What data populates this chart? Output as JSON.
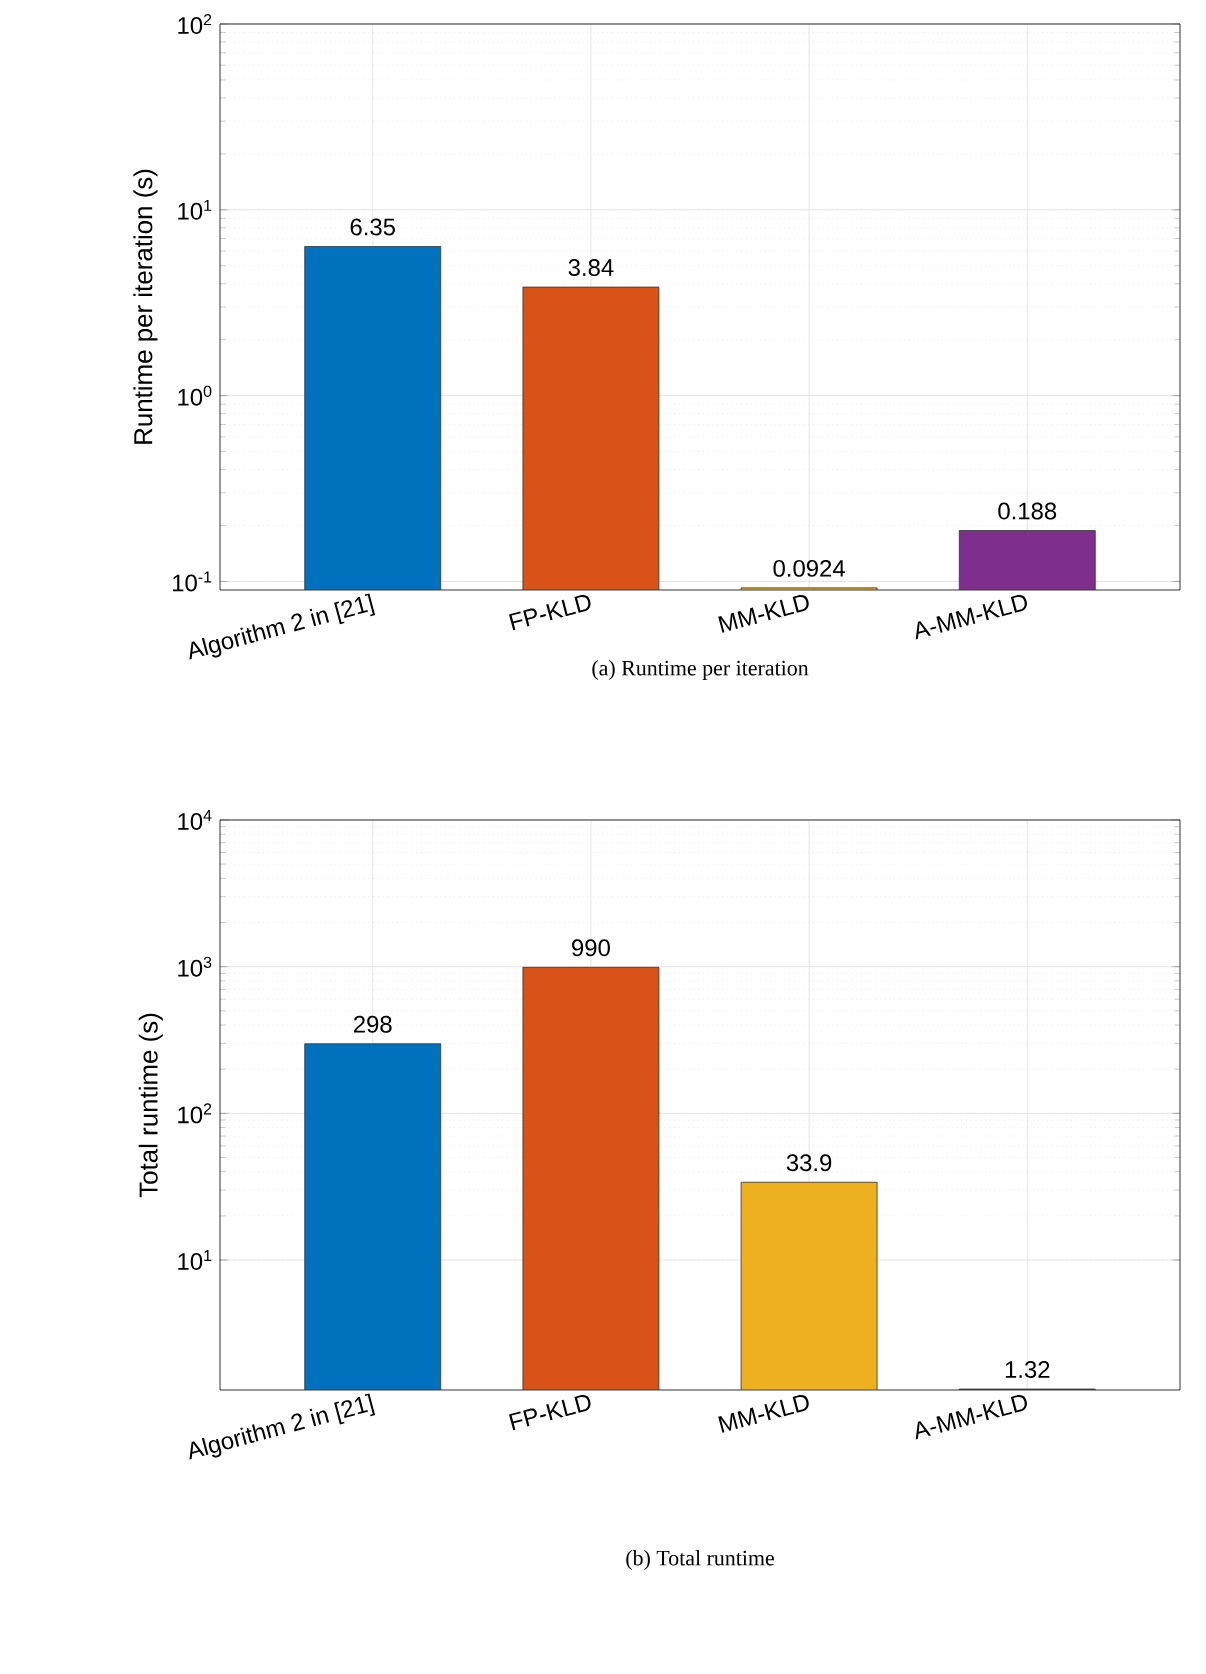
{
  "chart_data": [
    {
      "type": "bar",
      "title": "(a) Runtime per iteration",
      "ylabel": "Runtime per iteration (s)",
      "categories": [
        "Algorithm 2 in [21]",
        "FP-KLD",
        "MM-KLD",
        "A-MM-KLD"
      ],
      "values": [
        6.35,
        3.84,
        0.0924,
        0.188
      ],
      "colors": [
        "#0072bd",
        "#d95319",
        "#edb120",
        "#7e2f8e"
      ],
      "ylim": [
        0.09,
        100
      ],
      "yticks": [
        {
          "value": 0.1,
          "label": "10$^{-1}$"
        },
        {
          "value": 1,
          "label": "10$^{0}$"
        },
        {
          "value": 10,
          "label": "10$^{1}$"
        },
        {
          "value": 100,
          "label": "10$^{2}$"
        }
      ],
      "log": true,
      "grid": true,
      "data_labels": true
    },
    {
      "type": "bar",
      "title": "(b) Total runtime",
      "ylabel": "Total runtime (s)",
      "categories": [
        "Algorithm 2 in [21]",
        "FP-KLD",
        "MM-KLD",
        "A-MM-KLD"
      ],
      "values": [
        298,
        990,
        33.9,
        1.32
      ],
      "colors": [
        "#0072bd",
        "#d95319",
        "#edb120",
        "#7e2f8e"
      ],
      "ylim": [
        1.3,
        10000
      ],
      "yticks": [
        {
          "value": 10,
          "label": "10$^{1}$"
        },
        {
          "value": 100,
          "label": "10$^{2}$"
        },
        {
          "value": 1000,
          "label": "10$^{3}$"
        },
        {
          "value": 10000,
          "label": "10$^{4}$"
        }
      ],
      "log": true,
      "grid": true,
      "data_labels": true
    }
  ]
}
